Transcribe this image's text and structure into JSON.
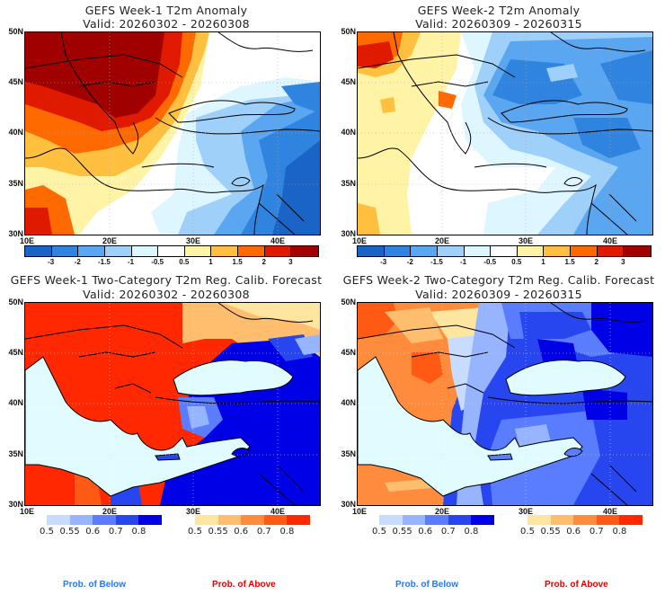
{
  "chart_data": [
    {
      "type": "heatmap",
      "title": "GEFS Week-1 T2m Anomaly",
      "subtitle": "Valid: 20260302 - 20260308",
      "xlabel": "",
      "ylabel": "",
      "x_ticks": [
        "10E",
        "20E",
        "30E",
        "40E"
      ],
      "y_ticks": [
        "50N",
        "45N",
        "40N",
        "35N",
        "30N"
      ],
      "xlim": [
        10,
        45
      ],
      "ylim": [
        30,
        50
      ],
      "grid": true,
      "colorbar": {
        "placement": "bottom",
        "ticks": [
          "-3",
          "-2",
          "-1.5",
          "-1",
          "-0.5",
          "0.5",
          "1",
          "1.5",
          "2",
          "3"
        ],
        "colors": [
          "#1a64c8",
          "#2f84e0",
          "#5aa6f0",
          "#9fd0fa",
          "#def6ff",
          "#ffffff",
          "#fff3a6",
          "#ffc040",
          "#ff6a00",
          "#e01a00",
          "#a00000"
        ]
      },
      "summary": "Warm anomalies (+2 to +3) over Italy, Balkans, Central Europe; cold anomalies (-1 to -3) over Turkey, Black Sea, Caucasus, Levant"
    },
    {
      "type": "heatmap",
      "title": "GEFS Week-2 T2m Anomaly",
      "subtitle": "Valid: 20260309 - 20260315",
      "x_ticks": [
        "10E",
        "20E",
        "30E",
        "40E"
      ],
      "y_ticks": [
        "50N",
        "45N",
        "40N",
        "35N",
        "30N"
      ],
      "xlim": [
        10,
        45
      ],
      "ylim": [
        30,
        50
      ],
      "grid": true,
      "colorbar": {
        "placement": "bottom",
        "ticks": [
          "-3",
          "-2",
          "-1.5",
          "-1",
          "-0.5",
          "0.5",
          "1",
          "1.5",
          "2",
          "3"
        ],
        "colors": [
          "#1a64c8",
          "#2f84e0",
          "#5aa6f0",
          "#9fd0fa",
          "#def6ff",
          "#ffffff",
          "#fff3a6",
          "#ffc040",
          "#ff6a00",
          "#e01a00",
          "#a00000"
        ]
      },
      "summary": "Weak warm anomalies over Italy and Alps; widespread cold anomalies (-1 to -2) over Balkans east, Black Sea, Turkey"
    },
    {
      "type": "heatmap",
      "title": "GEFS Week-1 Two-Category T2m Reg. Calib. Forecast",
      "subtitle": "Valid: 20260302 - 20260308",
      "x_ticks": [
        "10E",
        "20E",
        "30E",
        "40E"
      ],
      "y_ticks": [
        "50N",
        "45N",
        "40N",
        "35N",
        "30N"
      ],
      "xlim": [
        10,
        45
      ],
      "ylim": [
        30,
        50
      ],
      "grid": true,
      "legend": [
        {
          "name": "Prob. of Below",
          "ticks": [
            "0.5",
            "0.55",
            "0.6",
            "0.7",
            "0.8"
          ],
          "colors": [
            "#c8dcff",
            "#96b4ff",
            "#5a7cff",
            "#2846f0",
            "#0000e6"
          ]
        },
        {
          "name": "Prob. of Above",
          "ticks": [
            "0.5",
            "0.55",
            "0.6",
            "0.7",
            "0.8"
          ],
          "colors": [
            "#ffe6a0",
            "#ffbe6e",
            "#ff8c3c",
            "#ff5a14",
            "#ff2800"
          ]
        }
      ]
    },
    {
      "type": "heatmap",
      "title": "GEFS Week-2 Two-Category T2m Reg. Calib. Forecast",
      "subtitle": "Valid: 20260309 - 20260315",
      "x_ticks": [
        "10E",
        "20E",
        "30E",
        "40E"
      ],
      "y_ticks": [
        "50N",
        "45N",
        "40N",
        "35N",
        "30N"
      ],
      "xlim": [
        10,
        45
      ],
      "ylim": [
        30,
        50
      ],
      "grid": true,
      "legend": [
        {
          "name": "Prob. of Below",
          "ticks": [
            "0.5",
            "0.55",
            "0.6",
            "0.7",
            "0.8"
          ],
          "colors": [
            "#c8dcff",
            "#96b4ff",
            "#5a7cff",
            "#2846f0",
            "#0000e6"
          ]
        },
        {
          "name": "Prob. of Above",
          "ticks": [
            "0.5",
            "0.55",
            "0.6",
            "0.7",
            "0.8"
          ],
          "colors": [
            "#ffe6a0",
            "#ffbe6e",
            "#ff8c3c",
            "#ff5a14",
            "#ff2800"
          ]
        }
      ]
    }
  ],
  "panels": {
    "p1": {
      "title": "GEFS Week-1 T2m Anomaly",
      "valid": "Valid: 20260302 - 20260308"
    },
    "p2": {
      "title": "GEFS Week-2 T2m Anomaly",
      "valid": "Valid: 20260309 - 20260315"
    },
    "p3": {
      "title": "GEFS Week-1 Two-Category T2m Reg. Calib. Forecast",
      "valid": "Valid: 20260302 - 20260308"
    },
    "p4": {
      "title": "GEFS Week-2 Two-Category T2m Reg. Calib. Forecast",
      "valid": "Valid: 20260309 - 20260315"
    }
  },
  "axes": {
    "y": [
      "50N",
      "45N",
      "40N",
      "35N",
      "30N"
    ],
    "x": [
      "10E",
      "20E",
      "30E",
      "40E"
    ]
  },
  "anomaly_bar": {
    "ticks": [
      "-3",
      "-2",
      "-1.5",
      "-1",
      "-0.5",
      "0.5",
      "1",
      "1.5",
      "2",
      "3"
    ],
    "colors": [
      "#1a64c8",
      "#2f84e0",
      "#5aa6f0",
      "#9fd0fa",
      "#def6ff",
      "#ffffff",
      "#fff3a6",
      "#ffc040",
      "#ff6a00",
      "#e01a00",
      "#a00000"
    ]
  },
  "prob_bars": {
    "ticks": [
      "0.5",
      "0.55",
      "0.6",
      "0.7",
      "0.8"
    ],
    "below_colors": [
      "#c8dcff",
      "#96b4ff",
      "#5a7cff",
      "#2846f0",
      "#0000e6"
    ],
    "above_colors": [
      "#ffe6a0",
      "#ffbe6e",
      "#ff8c3c",
      "#ff5a14",
      "#ff2800"
    ]
  },
  "footer": {
    "below_label": "Prob. of Below",
    "above_label": "Prob. of Above",
    "below_color": "#1e78ff",
    "above_color": "#e60000"
  },
  "colors": {
    "sea_prob": "#e0fcff"
  }
}
